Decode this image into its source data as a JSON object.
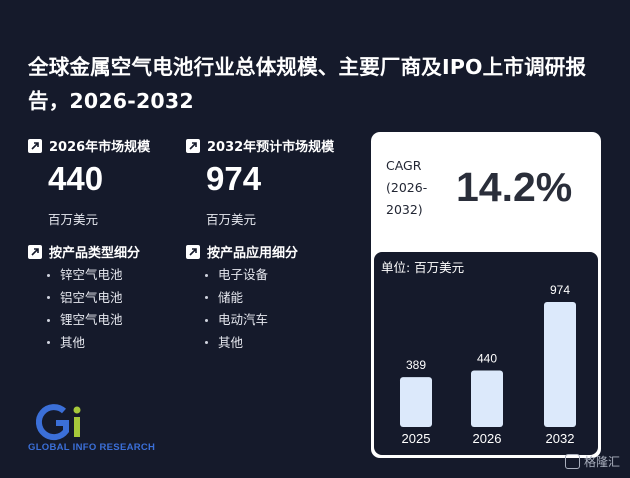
{
  "title": "全球金属空气电池行业总体规模、主要厂商及IPO上市调研报告，2026-2032",
  "market_2026": {
    "label": "2026年市场规模",
    "value": "440",
    "unit": "百万美元"
  },
  "market_2032": {
    "label": "2032年预计市场规模",
    "value": "974",
    "unit": "百万美元"
  },
  "by_type": {
    "label": "按产品类型细分",
    "items": [
      "锌空气电池",
      "铝空气电池",
      "锂空气电池",
      "其他"
    ]
  },
  "by_application": {
    "label": "按产品应用细分",
    "items": [
      "电子设备",
      "储能",
      "电动汽车",
      "其他"
    ]
  },
  "cagr": {
    "label": "CAGR",
    "period": "(2026-2032)",
    "value": "14.2%"
  },
  "chart_unit": "单位: 百万美元",
  "chart_data": {
    "type": "bar",
    "categories": [
      "2025",
      "2026",
      "2032"
    ],
    "values": [
      389,
      440,
      974
    ],
    "ylabel": "百万美元",
    "bar_color": "#dce9fb"
  },
  "logo": {
    "text": "GLOBAL INFO RESEARCH",
    "mark": "Gi"
  },
  "watermark": "格隆汇",
  "colors": {
    "background": "#151a2b",
    "card": "#ffffff",
    "bar": "#dce9fb",
    "logo_blue": "#3b6fd8",
    "logo_green": "#a6c83a"
  }
}
